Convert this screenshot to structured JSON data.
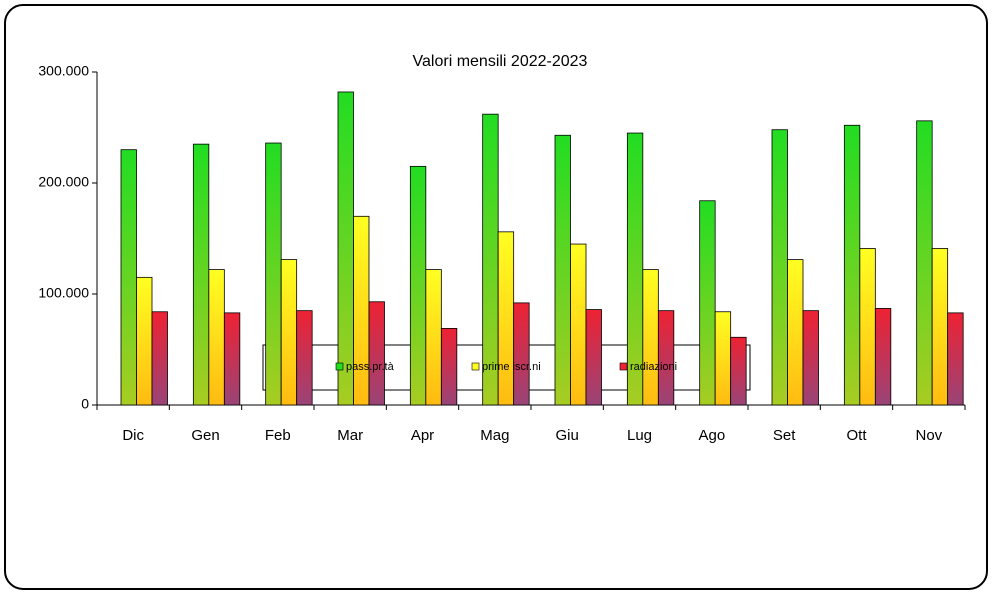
{
  "chart_data": {
    "type": "bar",
    "title": "Valori  mensili 2022-2023",
    "categories": [
      "Dic",
      "Gen",
      "Feb",
      "Mar",
      "Apr",
      "Mag",
      "Giu",
      "Lug",
      "Ago",
      "Set",
      "Ott",
      "Nov"
    ],
    "series": [
      {
        "name": "pass.pr.tà",
        "color": "#22dd22",
        "values": [
          230000,
          235000,
          236000,
          282000,
          215000,
          262000,
          243000,
          245000,
          184000,
          248000,
          252000,
          256000
        ]
      },
      {
        "name": "prime iscr.ni",
        "color": "#ffff22",
        "values": [
          115000,
          122000,
          131000,
          170000,
          122000,
          156000,
          145000,
          122000,
          84000,
          131000,
          141000,
          141000
        ]
      },
      {
        "name": "radiazioni",
        "color": "#ee2233",
        "values": [
          84000,
          83000,
          85000,
          93000,
          69000,
          92000,
          86000,
          85000,
          61000,
          85000,
          87000,
          83000
        ]
      }
    ],
    "ylim": [
      0,
      300000
    ],
    "yticks": [
      0,
      {
        "value": 100000,
        "label": "100.000"
      },
      {
        "value": 200000,
        "label": "200.000"
      },
      {
        "value": 300000,
        "label": "300.000"
      }
    ],
    "legend": "bottom"
  }
}
